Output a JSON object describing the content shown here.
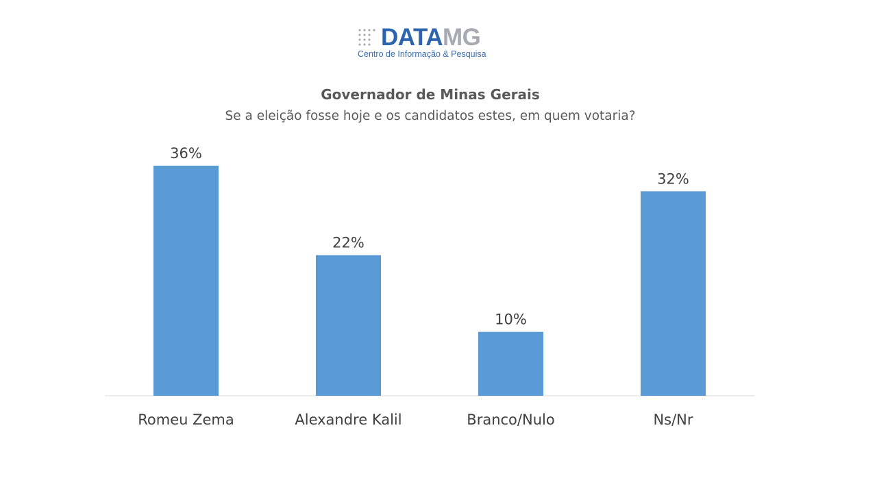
{
  "logo": {
    "data": "DATA",
    "mg": "MG",
    "tagline": "Centro de Informação & Pesquisa"
  },
  "chart_data": {
    "type": "bar",
    "title": "Governador de Minas Gerais",
    "subtitle": "Se a eleição fosse hoje e os candidatos estes, em quem votaria?",
    "categories": [
      "Romeu Zema",
      "Alexandre Kalil",
      "Branco/Nulo",
      "Ns/Nr"
    ],
    "values": [
      36,
      22,
      10,
      32
    ],
    "value_labels": [
      "36%",
      "22%",
      "10%",
      "32%"
    ],
    "unit": "%",
    "ylim": [
      0,
      40
    ],
    "grid": false,
    "legend": "none",
    "bar_color": "#5b9bd5",
    "axis_color": "#d9d9d9"
  }
}
